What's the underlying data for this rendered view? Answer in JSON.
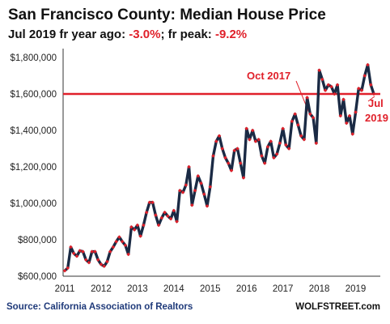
{
  "colors": {
    "line": "#1a2a44",
    "marker": "#e0202a",
    "refline": "#e0202a",
    "text": "#111111",
    "annotation": "#e0202a",
    "source": "#1f3a7a"
  },
  "subtitle": {
    "prefix": "Jul 2019 fr year ago: ",
    "yoy": "-3.0%",
    "middle": "; fr peak: ",
    "from_peak": "-9.2%"
  },
  "source": "Source: California Association of Realtors",
  "brand": "WOLFSTREET.com",
  "chart_data": {
    "type": "line",
    "title": "San Francisco County: Median House Price",
    "xlabel": "",
    "ylabel": "",
    "x_tick_labels": [
      "2011",
      "2012",
      "2013",
      "2014",
      "2015",
      "2016",
      "2017",
      "2018",
      "2019"
    ],
    "y_tick_labels": [
      "$600,000",
      "$800,000",
      "$1,000,000",
      "$1,200,000",
      "$1,400,000",
      "$1,600,000",
      "$1,800,000"
    ],
    "ylim": [
      600000,
      1800000
    ],
    "grid": false,
    "legend": "none",
    "reference_line": {
      "y": 1600000,
      "orientation": "horizontal"
    },
    "annotations": [
      {
        "text": "Oct 2017",
        "target_index": 81
      },
      {
        "text": "Jul",
        "target_index": 102
      },
      {
        "text": "2019",
        "target_index": 102
      }
    ],
    "series": [
      {
        "start": "2011-01",
        "frequency": "monthly",
        "values": [
          630000,
          645000,
          760000,
          725000,
          710000,
          740000,
          735000,
          690000,
          675000,
          735000,
          735000,
          690000,
          665000,
          655000,
          680000,
          735000,
          760000,
          790000,
          815000,
          790000,
          770000,
          720000,
          870000,
          855000,
          880000,
          820000,
          880000,
          950000,
          1005000,
          1005000,
          935000,
          880000,
          920000,
          950000,
          930000,
          915000,
          960000,
          900000,
          1070000,
          1060000,
          1100000,
          1200000,
          990000,
          1070000,
          1150000,
          1110000,
          1050000,
          985000,
          1090000,
          1260000,
          1340000,
          1370000,
          1300000,
          1250000,
          1220000,
          1180000,
          1290000,
          1300000,
          1220000,
          1140000,
          1410000,
          1350000,
          1400000,
          1340000,
          1350000,
          1260000,
          1220000,
          1310000,
          1340000,
          1250000,
          1270000,
          1330000,
          1410000,
          1320000,
          1300000,
          1450000,
          1490000,
          1430000,
          1370000,
          1350000,
          1580000,
          1490000,
          1470000,
          1330000,
          1730000,
          1680000,
          1620000,
          1650000,
          1640000,
          1600000,
          1650000,
          1480000,
          1570000,
          1440000,
          1480000,
          1380000,
          1500000,
          1630000,
          1620000,
          1700000,
          1760000,
          1650000,
          1600000
        ]
      }
    ]
  }
}
